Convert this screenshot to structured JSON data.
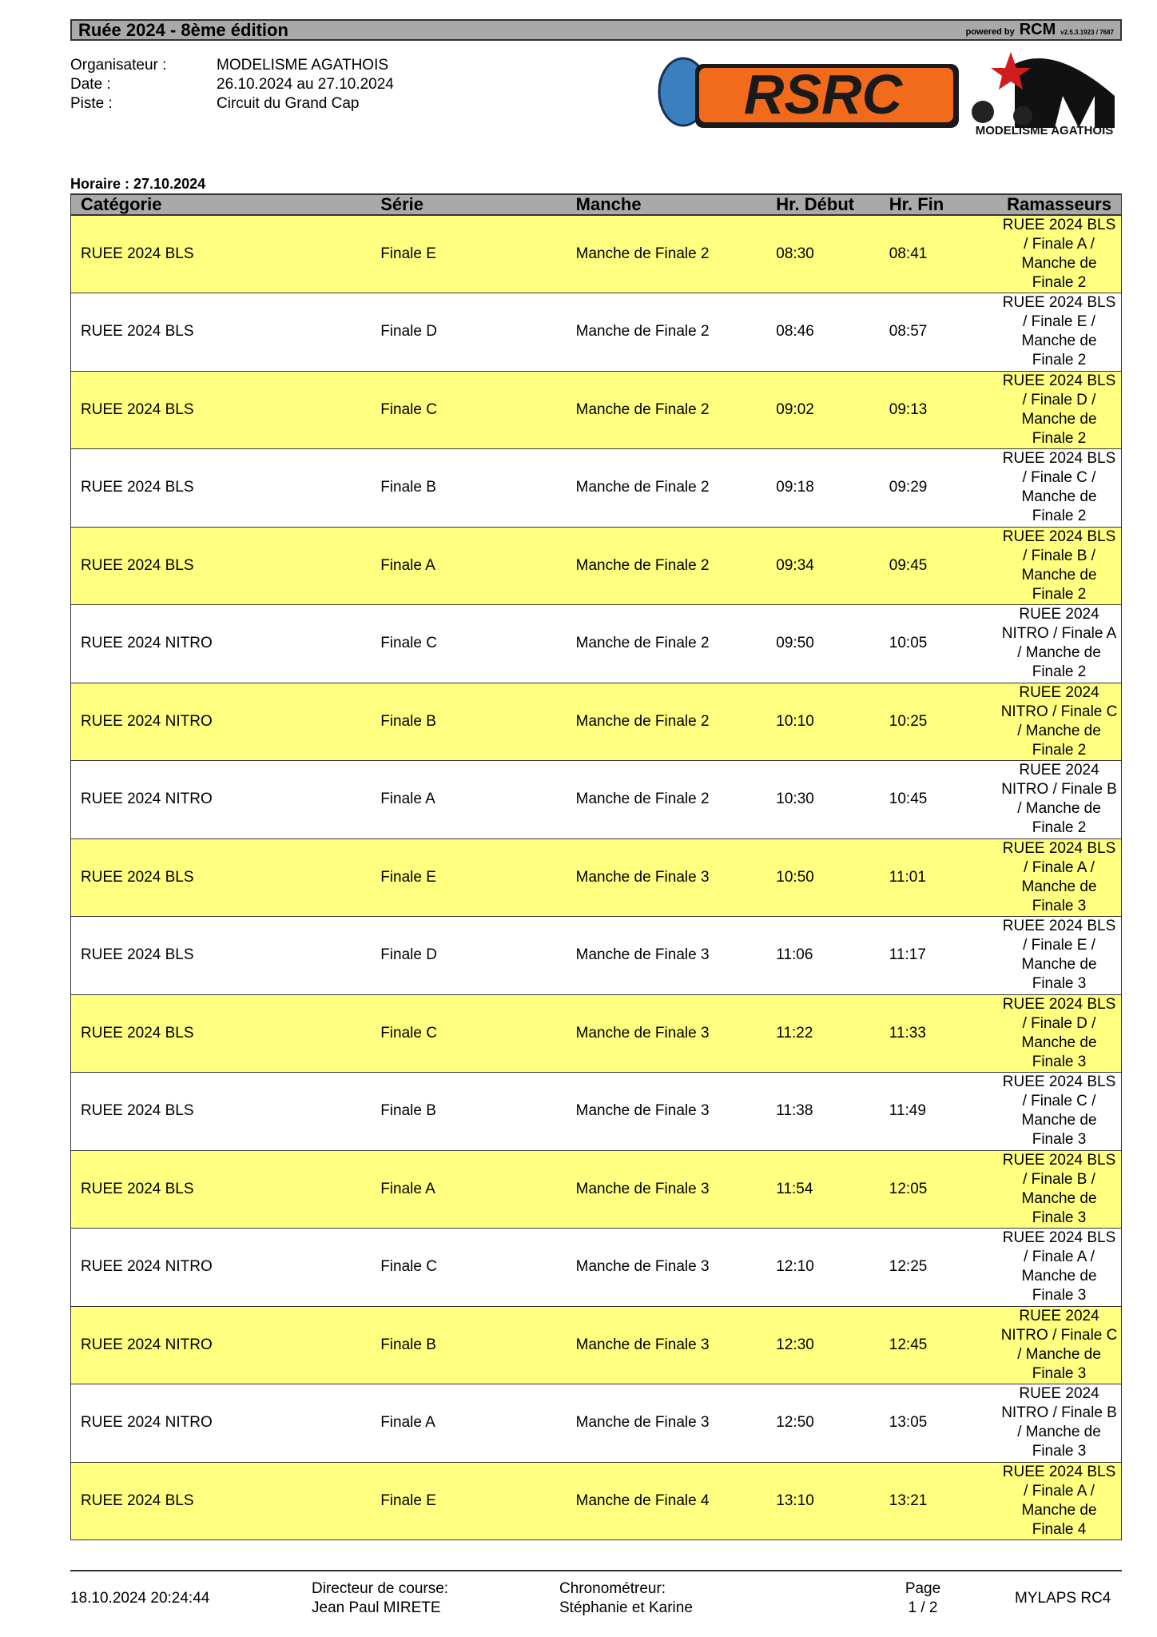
{
  "header": {
    "title": "Ruée 2024 - 8ème édition",
    "powered_by": "powered by",
    "brand": "RCM",
    "version": "v2.5.3.1923 / 7687"
  },
  "info": [
    {
      "label": "Organisateur :",
      "value": "MODELISME AGATHOIS"
    },
    {
      "label": "Date :",
      "value": "26.10.2024 au 27.10.2024"
    },
    {
      "label": "Piste :",
      "value": "Circuit du Grand Cap"
    }
  ],
  "logos": {
    "rsrc": "RSRC",
    "agathois": "MODELISME AGATHOIS"
  },
  "schedule_title": "Horaire : 27.10.2024",
  "columns": [
    "Catégorie",
    "Série",
    "Manche",
    "Hr. Début",
    "Hr. Fin",
    "Ramasseurs"
  ],
  "rows": [
    [
      "RUEE 2024 BLS",
      "Finale E",
      "Manche de Finale 2",
      "08:30",
      "08:41",
      "RUEE 2024 BLS / Finale A / Manche de Finale 2"
    ],
    [
      "RUEE 2024 BLS",
      "Finale D",
      "Manche de Finale 2",
      "08:46",
      "08:57",
      "RUEE 2024 BLS / Finale E / Manche de Finale 2"
    ],
    [
      "RUEE 2024 BLS",
      "Finale C",
      "Manche de Finale 2",
      "09:02",
      "09:13",
      "RUEE 2024 BLS / Finale D / Manche de Finale 2"
    ],
    [
      "RUEE 2024 BLS",
      "Finale B",
      "Manche de Finale 2",
      "09:18",
      "09:29",
      "RUEE 2024 BLS / Finale C / Manche de Finale 2"
    ],
    [
      "RUEE 2024 BLS",
      "Finale A",
      "Manche de Finale 2",
      "09:34",
      "09:45",
      "RUEE 2024 BLS / Finale B / Manche de Finale 2"
    ],
    [
      "RUEE 2024 NITRO",
      "Finale C",
      "Manche de Finale 2",
      "09:50",
      "10:05",
      "RUEE 2024 NITRO / Finale A / Manche de Finale 2"
    ],
    [
      "RUEE 2024 NITRO",
      "Finale B",
      "Manche de Finale 2",
      "10:10",
      "10:25",
      "RUEE 2024 NITRO / Finale C / Manche de Finale 2"
    ],
    [
      "RUEE 2024 NITRO",
      "Finale A",
      "Manche de Finale 2",
      "10:30",
      "10:45",
      "RUEE 2024 NITRO / Finale B / Manche de Finale 2"
    ],
    [
      "RUEE 2024 BLS",
      "Finale E",
      "Manche de Finale 3",
      "10:50",
      "11:01",
      "RUEE 2024 BLS / Finale A / Manche de Finale 3"
    ],
    [
      "RUEE 2024 BLS",
      "Finale D",
      "Manche de Finale 3",
      "11:06",
      "11:17",
      "RUEE 2024 BLS / Finale E / Manche de Finale 3"
    ],
    [
      "RUEE 2024 BLS",
      "Finale C",
      "Manche de Finale 3",
      "11:22",
      "11:33",
      "RUEE 2024 BLS / Finale D / Manche de Finale 3"
    ],
    [
      "RUEE 2024 BLS",
      "Finale B",
      "Manche de Finale 3",
      "11:38",
      "11:49",
      "RUEE 2024 BLS / Finale C / Manche de Finale 3"
    ],
    [
      "RUEE 2024 BLS",
      "Finale A",
      "Manche de Finale 3",
      "11:54",
      "12:05",
      "RUEE 2024 BLS / Finale B / Manche de Finale 3"
    ],
    [
      "RUEE 2024 NITRO",
      "Finale C",
      "Manche de Finale 3",
      "12:10",
      "12:25",
      "RUEE 2024 BLS / Finale A / Manche de Finale 3"
    ],
    [
      "RUEE 2024 NITRO",
      "Finale B",
      "Manche de Finale 3",
      "12:30",
      "12:45",
      "RUEE 2024 NITRO / Finale C / Manche de Finale 3"
    ],
    [
      "RUEE 2024 NITRO",
      "Finale A",
      "Manche de Finale 3",
      "12:50",
      "13:05",
      "RUEE 2024 NITRO / Finale B / Manche de Finale 3"
    ],
    [
      "RUEE 2024 BLS",
      "Finale E",
      "Manche de Finale 4",
      "13:10",
      "13:21",
      "RUEE 2024 BLS / Finale A / Manche de Finale 4"
    ]
  ],
  "colors": {
    "highlight_row": "#ffff80",
    "header_bg": "#a9a9a9"
  },
  "footer": {
    "timestamp": "18.10.2024 20:24:44",
    "director_label": "Directeur de course:",
    "director": "Jean Paul MIRETE",
    "timer_label": "Chronométreur:",
    "timer": "Stéphanie et Karine",
    "page_label": "Page",
    "page": "1 / 2",
    "software": "MYLAPS RC4"
  }
}
